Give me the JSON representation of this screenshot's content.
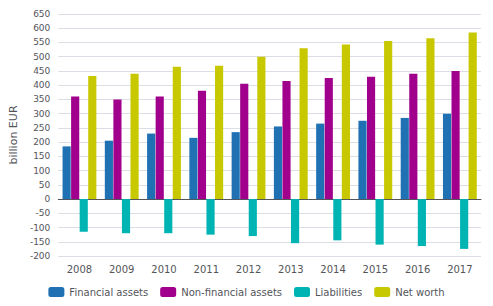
{
  "chart_data": {
    "type": "bar",
    "ylabel": "billion EUR",
    "categories": [
      "2008",
      "2009",
      "2010",
      "2011",
      "2012",
      "2013",
      "2014",
      "2015",
      "2016",
      "2017"
    ],
    "series": [
      {
        "name": "Financial assets",
        "color": "#2070B4",
        "values": [
          185,
          205,
          230,
          215,
          235,
          255,
          265,
          275,
          285,
          300
        ]
      },
      {
        "name": "Non-financial assets",
        "color": "#A0008C",
        "values": [
          360,
          350,
          360,
          380,
          405,
          415,
          425,
          430,
          440,
          450
        ]
      },
      {
        "name": "Liabilities",
        "color": "#00B4B4",
        "values": [
          -115,
          -120,
          -120,
          -125,
          -130,
          -155,
          -145,
          -160,
          -165,
          -175
        ]
      },
      {
        "name": "Net worth",
        "color": "#C8C800",
        "values": [
          432,
          440,
          465,
          468,
          500,
          530,
          543,
          555,
          565,
          585
        ]
      }
    ],
    "ylim": [
      -200,
      650
    ],
    "yticks": [
      -200,
      -150,
      -100,
      -50,
      0,
      50,
      100,
      150,
      200,
      250,
      300,
      350,
      400,
      450,
      500,
      550,
      600,
      650
    ],
    "grid": true,
    "legend": "bottom"
  }
}
